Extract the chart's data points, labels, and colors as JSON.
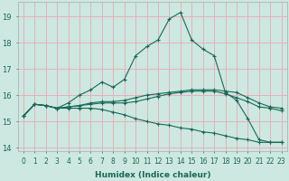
{
  "xlabel": "Humidex (Indice chaleur)",
  "bg_color": "#cce8e0",
  "grid_color": "#e8b0b8",
  "line_color": "#1a6858",
  "xlim": [
    -0.5,
    23.5
  ],
  "ylim": [
    13.85,
    19.55
  ],
  "yticks": [
    14,
    15,
    16,
    17,
    18,
    19
  ],
  "xticks": [
    0,
    1,
    2,
    3,
    4,
    5,
    6,
    7,
    8,
    9,
    10,
    11,
    12,
    13,
    14,
    15,
    16,
    17,
    18,
    19,
    20,
    21,
    22,
    23
  ],
  "line1_y": [
    15.2,
    15.65,
    15.6,
    15.5,
    15.7,
    16.0,
    16.2,
    16.5,
    16.3,
    16.6,
    17.5,
    17.85,
    18.1,
    18.9,
    19.15,
    18.1,
    17.75,
    17.5,
    16.1,
    15.8,
    15.1,
    14.3,
    14.2,
    14.2
  ],
  "line2_y": [
    15.2,
    15.65,
    15.6,
    15.5,
    15.55,
    15.6,
    15.7,
    15.75,
    15.75,
    15.8,
    15.9,
    16.0,
    16.05,
    16.1,
    16.15,
    16.2,
    16.2,
    16.2,
    16.15,
    16.1,
    15.9,
    15.7,
    15.55,
    15.5
  ],
  "line3_y": [
    15.2,
    15.65,
    15.6,
    15.5,
    15.5,
    15.5,
    15.5,
    15.45,
    15.35,
    15.25,
    15.1,
    15.0,
    14.9,
    14.85,
    14.75,
    14.7,
    14.6,
    14.55,
    14.45,
    14.35,
    14.3,
    14.2,
    14.2,
    14.2
  ],
  "line4_y": [
    15.2,
    15.65,
    15.6,
    15.5,
    15.55,
    15.6,
    15.65,
    15.7,
    15.7,
    15.7,
    15.75,
    15.85,
    15.95,
    16.05,
    16.1,
    16.15,
    16.15,
    16.15,
    16.05,
    15.9,
    15.75,
    15.55,
    15.5,
    15.4
  ],
  "tick_fontsize": 5.5,
  "xlabel_fontsize": 6.5,
  "lw": 0.8,
  "ms": 3
}
